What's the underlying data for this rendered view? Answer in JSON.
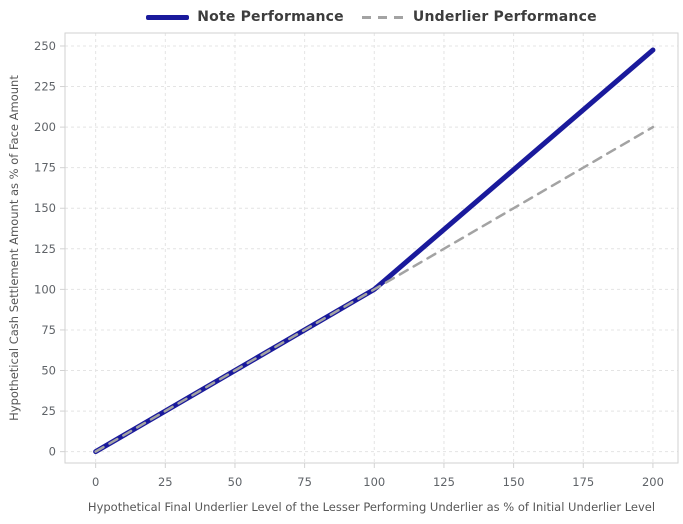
{
  "chart_data": {
    "type": "line",
    "title": "",
    "xlabel": "Hypothetical Final Underlier Level of the Lesser Performing Underlier as % of Initial Underlier Level",
    "ylabel": "Hypothetical Cash Settlement Amount as % of Face Amount",
    "xticks": [
      0,
      25,
      50,
      75,
      100,
      125,
      150,
      175,
      200
    ],
    "yticks": [
      0,
      25,
      50,
      75,
      100,
      125,
      150,
      175,
      200,
      225,
      250
    ],
    "xlim": [
      -11,
      209
    ],
    "ylim": [
      -7,
      258
    ],
    "grid": true,
    "legend_position": "top-center",
    "series": [
      {
        "name": "Note Performance",
        "color": "#1a1a9c",
        "style": "solid",
        "width": 5,
        "points": [
          [
            0,
            0
          ],
          [
            100,
            100
          ],
          [
            200,
            247.5
          ]
        ]
      },
      {
        "name": "Underlier Performance",
        "color": "#a3a3a3",
        "style": "dashed",
        "width": 2.5,
        "points": [
          [
            0,
            0
          ],
          [
            200,
            200
          ]
        ]
      }
    ],
    "colors": {
      "background": "#ffffff",
      "grid": "#e4e4e4",
      "border": "#d2d2d2",
      "tick_text": "#5f6368",
      "axis_label_text": "#575757",
      "legend_text": "#3d3d3d"
    }
  }
}
